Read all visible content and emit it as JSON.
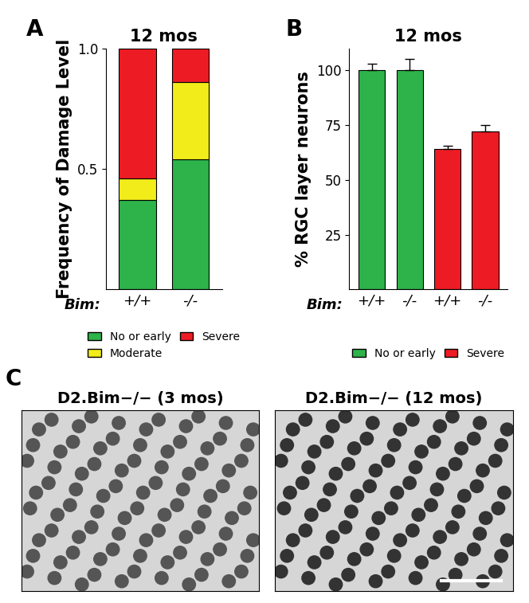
{
  "chart_data": [
    {
      "type": "bar",
      "panel": "A",
      "title": "12 mos",
      "stacked": true,
      "y_label": "Frequency of Damage Level",
      "x_label": "Bim:",
      "categories": [
        "+/+",
        "-/-"
      ],
      "ylim": [
        0,
        1.0
      ],
      "yticks": [
        {
          "value": 0.5,
          "label": "0.5"
        },
        {
          "value": 1.0,
          "label": "1.0"
        }
      ],
      "legend": "lower center",
      "series": [
        {
          "name": "No or early",
          "color": "#2db34a",
          "values": [
            0.37,
            0.54
          ]
        },
        {
          "name": "Moderate",
          "color": "#f2ec1a",
          "values": [
            0.09,
            0.32
          ]
        },
        {
          "name": "Severe",
          "color": "#ed1c24",
          "values": [
            0.54,
            0.14
          ]
        }
      ]
    },
    {
      "type": "bar",
      "panel": "B",
      "title": "12 mos",
      "y_label": "% RGC layer neurons",
      "x_label": "Bim:",
      "categories": [
        "+/+",
        "-/-",
        "+/+",
        "-/-"
      ],
      "ylim": [
        0,
        110
      ],
      "yticks": [
        25,
        50,
        75,
        100
      ],
      "legend": "lower center",
      "series": [
        {
          "name": "No or early",
          "color": "#2db34a",
          "values": [
            100,
            100,
            null,
            null
          ],
          "errors": [
            3,
            5,
            null,
            null
          ]
        },
        {
          "name": "Severe",
          "color": "#ed1c24",
          "values": [
            null,
            null,
            64,
            72
          ],
          "errors": [
            null,
            null,
            1.5,
            3
          ]
        }
      ]
    },
    {
      "type": "image",
      "panel": "C",
      "titles": [
        "D2.Bim−/− (3 mos)",
        "D2.Bim−/− (12 mos)"
      ]
    }
  ]
}
